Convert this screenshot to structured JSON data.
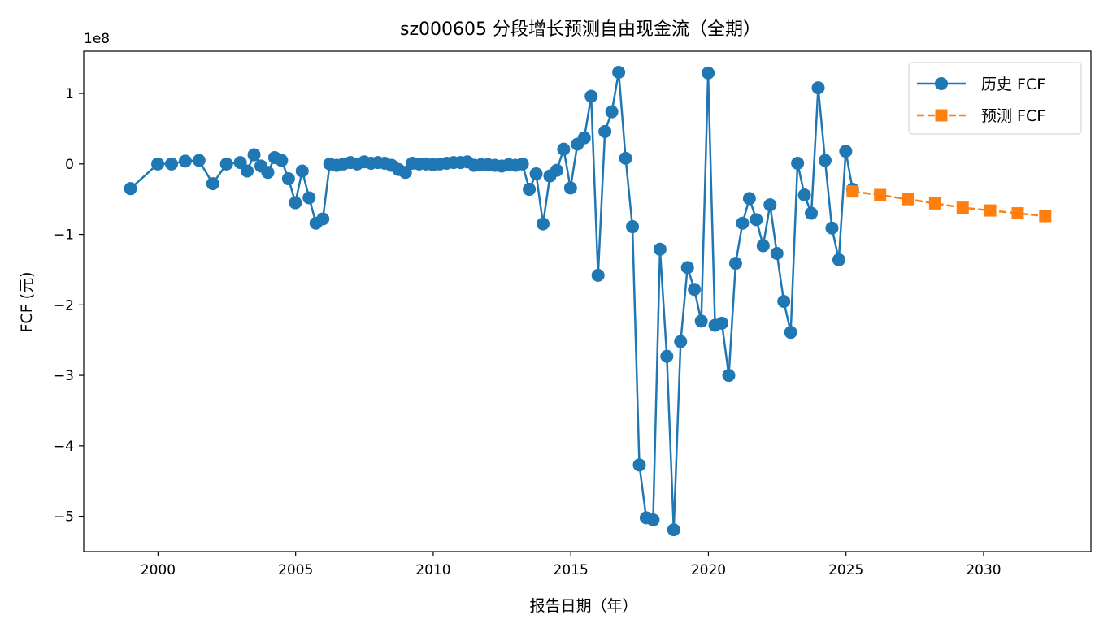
{
  "chart_data": {
    "type": "line",
    "title": "sz000605 分段增长预测自由现金流（全期）",
    "xlabel": "报告日期（年）",
    "ylabel": "FCF (元)",
    "y_offset_text": "1e8",
    "y_multiplier": 100000000,
    "xlim": [
      1997.3,
      2033.9
    ],
    "ylim": [
      -5.5,
      1.6
    ],
    "x_ticks": [
      2000,
      2005,
      2010,
      2015,
      2020,
      2025,
      2030
    ],
    "x_tick_labels": [
      "2000",
      "2005",
      "2010",
      "2015",
      "2020",
      "2025",
      "2030"
    ],
    "y_ticks": [
      -5,
      -4,
      -3,
      -2,
      -1,
      0,
      1
    ],
    "y_tick_labels": [
      "−5",
      "−4",
      "−3",
      "−2",
      "−1",
      "0",
      "1"
    ],
    "grid": false,
    "legend_position": "top-right",
    "series": [
      {
        "name": "历史 FCF",
        "color": "#1f77b4",
        "marker": "circle",
        "line_style": "solid",
        "x": [
          1999.0,
          1999.99,
          2000.49,
          2000.99,
          2001.49,
          2001.99,
          2002.49,
          2002.99,
          2003.24,
          2003.49,
          2003.74,
          2003.99,
          2004.24,
          2004.49,
          2004.74,
          2004.99,
          2005.24,
          2005.49,
          2005.74,
          2005.99,
          2006.24,
          2006.49,
          2006.74,
          2006.99,
          2007.24,
          2007.49,
          2007.74,
          2007.99,
          2008.24,
          2008.49,
          2008.74,
          2008.99,
          2009.24,
          2009.49,
          2009.74,
          2009.99,
          2010.24,
          2010.49,
          2010.74,
          2010.99,
          2011.24,
          2011.49,
          2011.74,
          2011.99,
          2012.24,
          2012.49,
          2012.74,
          2012.99,
          2013.24,
          2013.49,
          2013.74,
          2013.99,
          2014.24,
          2014.49,
          2014.74,
          2014.99,
          2015.24,
          2015.49,
          2015.74,
          2015.99,
          2016.24,
          2016.49,
          2016.74,
          2016.99,
          2017.24,
          2017.49,
          2017.74,
          2017.99,
          2018.24,
          2018.49,
          2018.74,
          2018.99,
          2019.24,
          2019.49,
          2019.74,
          2019.99,
          2020.24,
          2020.49,
          2020.74,
          2020.99,
          2021.24,
          2021.49,
          2021.74,
          2021.99,
          2022.24,
          2022.49,
          2022.74,
          2022.99,
          2023.24,
          2023.49,
          2023.74,
          2023.99,
          2024.24,
          2024.49,
          2024.74,
          2024.99,
          2025.24
        ],
        "y": [
          -0.35,
          0.0,
          0.0,
          0.04,
          0.05,
          -0.28,
          0.0,
          0.02,
          -0.1,
          0.13,
          -0.03,
          -0.12,
          0.09,
          0.05,
          -0.21,
          -0.55,
          -0.1,
          -0.48,
          -0.84,
          -0.78,
          0.0,
          -0.02,
          0.0,
          0.02,
          0.0,
          0.03,
          0.01,
          0.02,
          0.01,
          -0.02,
          -0.08,
          -0.12,
          0.01,
          0.0,
          0.0,
          -0.01,
          0.0,
          0.01,
          0.02,
          0.02,
          0.03,
          -0.02,
          -0.01,
          -0.01,
          -0.02,
          -0.03,
          -0.01,
          -0.02,
          0.0,
          -0.36,
          -0.14,
          -0.85,
          -0.17,
          -0.09,
          0.21,
          -0.34,
          0.28,
          0.37,
          0.96,
          -1.58,
          0.46,
          0.74,
          1.3,
          0.08,
          -0.89,
          -4.27,
          -5.02,
          -5.05,
          -1.21,
          -2.73,
          -5.19,
          -2.52,
          -1.47,
          -1.78,
          -2.23,
          1.29,
          -2.29,
          -2.26,
          -3.0,
          -1.41,
          -0.84,
          -0.49,
          -0.79,
          -1.16,
          -0.58,
          -1.27,
          -1.95,
          -2.39,
          0.01,
          -0.44,
          -0.7,
          1.08,
          0.05,
          -0.91,
          -1.36,
          0.18,
          -0.36
        ]
      },
      {
        "name": "预测 FCF",
        "color": "#ff7f0e",
        "marker": "square",
        "line_style": "dashed",
        "x": [
          2025.24,
          2026.24,
          2027.24,
          2028.24,
          2029.24,
          2030.24,
          2031.24,
          2032.24
        ],
        "y": [
          -0.39,
          -0.44,
          -0.5,
          -0.56,
          -0.62,
          -0.66,
          -0.7,
          -0.74
        ]
      }
    ]
  }
}
